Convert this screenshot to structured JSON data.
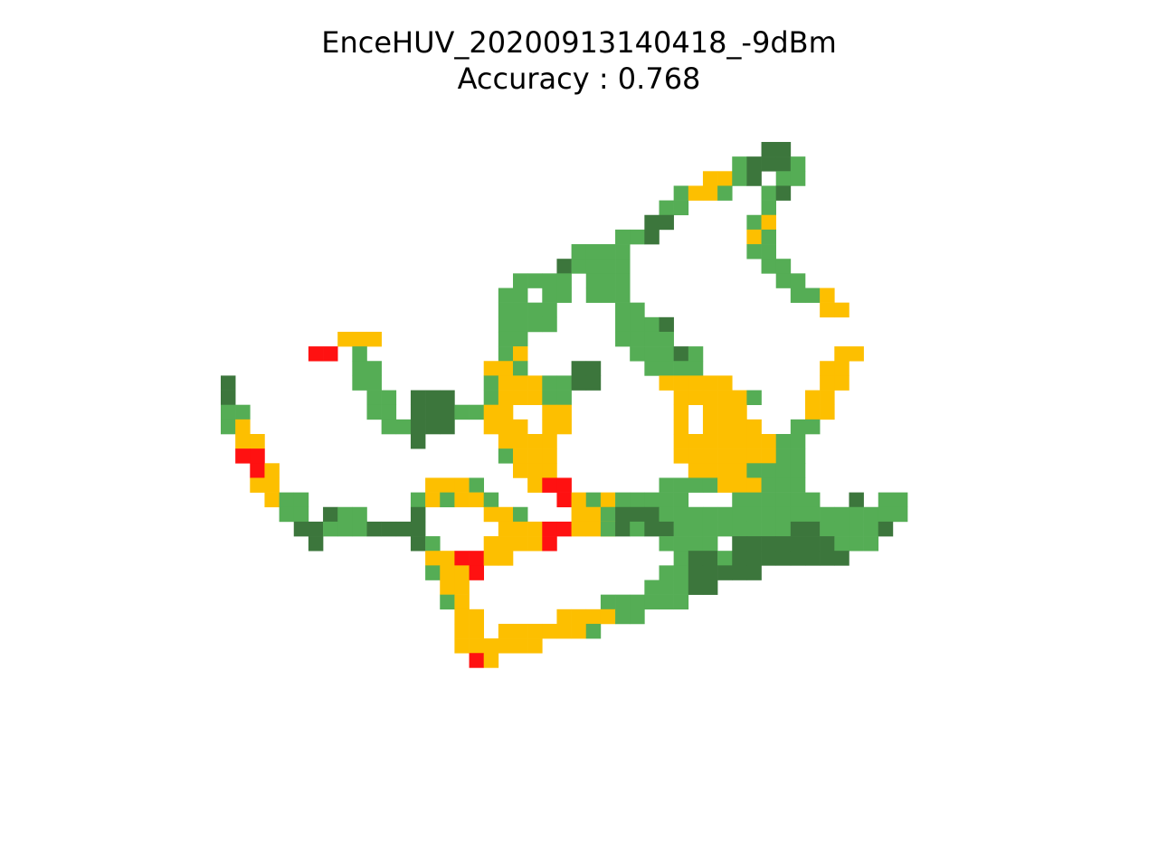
{
  "chart_data": {
    "type": "heatmap",
    "title_lines": [
      "EnceHUV_20200913140418_-9dBm",
      "Accuracy : 0.768"
    ],
    "grid_size": [
      48,
      48
    ],
    "colors": {
      "1": "#3c763c",
      "2": "#55ad55",
      "3": "#fdbf00",
      "4": "#ff1111"
    },
    "rows": [
      {
        "r": 0,
        "cells": [
          [
            37,
            38,
            1
          ]
        ]
      },
      {
        "r": 1,
        "cells": [
          [
            35,
            35,
            2
          ],
          [
            36,
            38,
            1
          ],
          [
            39,
            39,
            2
          ]
        ]
      },
      {
        "r": 2,
        "cells": [
          [
            33,
            34,
            3
          ],
          [
            35,
            35,
            2
          ],
          [
            36,
            36,
            1
          ],
          [
            38,
            39,
            2
          ]
        ]
      },
      {
        "r": 3,
        "cells": [
          [
            31,
            31,
            2
          ],
          [
            32,
            33,
            3
          ],
          [
            34,
            34,
            2
          ],
          [
            37,
            37,
            2
          ],
          [
            38,
            38,
            1
          ]
        ]
      },
      {
        "r": 4,
        "cells": [
          [
            30,
            31,
            2
          ],
          [
            37,
            37,
            2
          ]
        ]
      },
      {
        "r": 5,
        "cells": [
          [
            29,
            30,
            1
          ],
          [
            36,
            36,
            2
          ],
          [
            37,
            37,
            3
          ]
        ]
      },
      {
        "r": 6,
        "cells": [
          [
            27,
            28,
            2
          ],
          [
            29,
            29,
            1
          ],
          [
            36,
            36,
            3
          ],
          [
            37,
            37,
            2
          ]
        ]
      },
      {
        "r": 7,
        "cells": [
          [
            24,
            27,
            2
          ],
          [
            36,
            37,
            2
          ]
        ]
      },
      {
        "r": 8,
        "cells": [
          [
            23,
            23,
            1
          ],
          [
            24,
            27,
            2
          ],
          [
            37,
            38,
            2
          ]
        ]
      },
      {
        "r": 9,
        "cells": [
          [
            20,
            23,
            2
          ],
          [
            25,
            27,
            2
          ],
          [
            38,
            39,
            2
          ]
        ]
      },
      {
        "r": 10,
        "cells": [
          [
            19,
            20,
            2
          ],
          [
            22,
            23,
            2
          ],
          [
            25,
            27,
            2
          ],
          [
            39,
            40,
            2
          ],
          [
            41,
            41,
            3
          ]
        ]
      },
      {
        "r": 11,
        "cells": [
          [
            19,
            22,
            2
          ],
          [
            27,
            28,
            2
          ],
          [
            41,
            42,
            3
          ]
        ]
      },
      {
        "r": 12,
        "cells": [
          [
            19,
            22,
            2
          ],
          [
            27,
            29,
            2
          ],
          [
            30,
            30,
            1
          ]
        ]
      },
      {
        "r": 13,
        "cells": [
          [
            8,
            10,
            3
          ],
          [
            19,
            20,
            2
          ],
          [
            27,
            30,
            2
          ]
        ]
      },
      {
        "r": 14,
        "cells": [
          [
            6,
            7,
            4
          ],
          [
            9,
            9,
            2
          ],
          [
            19,
            19,
            2
          ],
          [
            20,
            20,
            3
          ],
          [
            28,
            30,
            2
          ],
          [
            31,
            31,
            1
          ],
          [
            32,
            32,
            2
          ],
          [
            42,
            43,
            3
          ]
        ]
      },
      {
        "r": 15,
        "cells": [
          [
            9,
            10,
            2
          ],
          [
            18,
            19,
            3
          ],
          [
            20,
            20,
            2
          ],
          [
            24,
            25,
            1
          ],
          [
            29,
            32,
            2
          ],
          [
            41,
            42,
            3
          ]
        ]
      },
      {
        "r": 16,
        "cells": [
          [
            0,
            0,
            1
          ],
          [
            9,
            10,
            2
          ],
          [
            18,
            18,
            2
          ],
          [
            19,
            21,
            3
          ],
          [
            22,
            23,
            2
          ],
          [
            24,
            25,
            1
          ],
          [
            30,
            34,
            3
          ],
          [
            41,
            42,
            3
          ]
        ]
      },
      {
        "r": 17,
        "cells": [
          [
            0,
            0,
            1
          ],
          [
            10,
            11,
            2
          ],
          [
            13,
            15,
            1
          ],
          [
            18,
            18,
            2
          ],
          [
            19,
            21,
            3
          ],
          [
            22,
            23,
            2
          ],
          [
            31,
            32,
            3
          ],
          [
            33,
            35,
            3
          ],
          [
            36,
            36,
            2
          ],
          [
            40,
            41,
            3
          ]
        ]
      },
      {
        "r": 18,
        "cells": [
          [
            0,
            1,
            2
          ],
          [
            10,
            11,
            2
          ],
          [
            13,
            15,
            1
          ],
          [
            16,
            17,
            2
          ],
          [
            18,
            19,
            3
          ],
          [
            22,
            23,
            3
          ],
          [
            31,
            31,
            3
          ],
          [
            33,
            33,
            3
          ],
          [
            34,
            35,
            3
          ],
          [
            40,
            41,
            3
          ]
        ]
      },
      {
        "r": 19,
        "cells": [
          [
            0,
            0,
            2
          ],
          [
            1,
            1,
            3
          ],
          [
            11,
            12,
            2
          ],
          [
            13,
            15,
            1
          ],
          [
            18,
            20,
            3
          ],
          [
            22,
            23,
            3
          ],
          [
            31,
            31,
            3
          ],
          [
            33,
            36,
            3
          ],
          [
            39,
            40,
            2
          ]
        ]
      },
      {
        "r": 20,
        "cells": [
          [
            1,
            2,
            3
          ],
          [
            13,
            13,
            1
          ],
          [
            19,
            22,
            3
          ],
          [
            31,
            37,
            3
          ],
          [
            38,
            39,
            2
          ]
        ]
      },
      {
        "r": 21,
        "cells": [
          [
            1,
            2,
            4
          ],
          [
            19,
            19,
            2
          ],
          [
            20,
            22,
            3
          ],
          [
            31,
            37,
            3
          ],
          [
            38,
            39,
            2
          ]
        ]
      },
      {
        "r": 22,
        "cells": [
          [
            2,
            2,
            4
          ],
          [
            3,
            3,
            3
          ],
          [
            20,
            22,
            3
          ],
          [
            32,
            35,
            3
          ],
          [
            36,
            39,
            2
          ]
        ]
      },
      {
        "r": 23,
        "cells": [
          [
            2,
            3,
            3
          ],
          [
            14,
            16,
            3
          ],
          [
            17,
            17,
            2
          ],
          [
            21,
            21,
            3
          ],
          [
            22,
            23,
            4
          ],
          [
            30,
            33,
            2
          ],
          [
            34,
            36,
            3
          ],
          [
            37,
            39,
            2
          ]
        ]
      },
      {
        "r": 24,
        "cells": [
          [
            3,
            3,
            3
          ],
          [
            4,
            5,
            2
          ],
          [
            13,
            13,
            2
          ],
          [
            14,
            14,
            3
          ],
          [
            15,
            15,
            2
          ],
          [
            16,
            17,
            3
          ],
          [
            18,
            18,
            2
          ],
          [
            23,
            23,
            4
          ],
          [
            24,
            24,
            3
          ],
          [
            25,
            25,
            2
          ],
          [
            26,
            26,
            3
          ],
          [
            27,
            31,
            2
          ],
          [
            35,
            40,
            2
          ],
          [
            43,
            43,
            1
          ],
          [
            45,
            46,
            2
          ]
        ]
      },
      {
        "r": 25,
        "cells": [
          [
            4,
            5,
            2
          ],
          [
            7,
            7,
            1
          ],
          [
            8,
            9,
            2
          ],
          [
            13,
            13,
            1
          ],
          [
            18,
            19,
            3
          ],
          [
            20,
            20,
            2
          ],
          [
            24,
            25,
            3
          ],
          [
            26,
            26,
            2
          ],
          [
            27,
            29,
            1
          ],
          [
            30,
            30,
            2
          ],
          [
            31,
            46,
            2
          ]
        ]
      },
      {
        "r": 26,
        "cells": [
          [
            5,
            6,
            1
          ],
          [
            7,
            9,
            2
          ],
          [
            10,
            13,
            1
          ],
          [
            19,
            21,
            3
          ],
          [
            22,
            23,
            4
          ],
          [
            24,
            26,
            3
          ],
          [
            26,
            26,
            2
          ],
          [
            27,
            27,
            1
          ],
          [
            28,
            28,
            2
          ],
          [
            29,
            30,
            1
          ],
          [
            31,
            38,
            2
          ],
          [
            39,
            40,
            1
          ],
          [
            41,
            44,
            2
          ],
          [
            45,
            45,
            1
          ]
        ]
      },
      {
        "r": 27,
        "cells": [
          [
            6,
            6,
            1
          ],
          [
            13,
            13,
            1
          ],
          [
            14,
            14,
            2
          ],
          [
            18,
            21,
            3
          ],
          [
            22,
            22,
            4
          ],
          [
            30,
            33,
            2
          ],
          [
            35,
            41,
            1
          ],
          [
            42,
            44,
            2
          ]
        ]
      },
      {
        "r": 28,
        "cells": [
          [
            14,
            15,
            3
          ],
          [
            16,
            17,
            4
          ],
          [
            18,
            19,
            3
          ],
          [
            31,
            31,
            2
          ],
          [
            32,
            33,
            1
          ],
          [
            34,
            34,
            2
          ],
          [
            35,
            42,
            1
          ]
        ]
      },
      {
        "r": 29,
        "cells": [
          [
            14,
            14,
            2
          ],
          [
            15,
            16,
            3
          ],
          [
            17,
            17,
            4
          ],
          [
            30,
            31,
            2
          ],
          [
            32,
            36,
            1
          ]
        ]
      },
      {
        "r": 30,
        "cells": [
          [
            15,
            16,
            3
          ],
          [
            29,
            31,
            2
          ],
          [
            32,
            33,
            1
          ]
        ]
      },
      {
        "r": 31,
        "cells": [
          [
            15,
            15,
            2
          ],
          [
            16,
            16,
            3
          ],
          [
            26,
            31,
            2
          ]
        ]
      },
      {
        "r": 32,
        "cells": [
          [
            16,
            17,
            3
          ],
          [
            23,
            26,
            3
          ],
          [
            27,
            28,
            2
          ]
        ]
      },
      {
        "r": 33,
        "cells": [
          [
            16,
            17,
            3
          ],
          [
            19,
            24,
            3
          ],
          [
            25,
            25,
            2
          ]
        ]
      },
      {
        "r": 34,
        "cells": [
          [
            16,
            21,
            3
          ]
        ]
      },
      {
        "r": 35,
        "cells": [
          [
            17,
            17,
            4
          ],
          [
            18,
            18,
            3
          ]
        ]
      }
    ]
  }
}
